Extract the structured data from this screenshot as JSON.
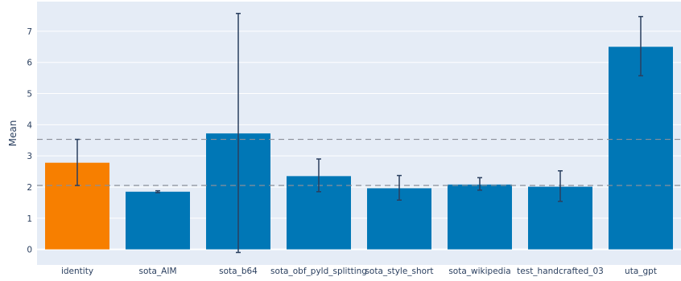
{
  "chart_data": {
    "type": "bar",
    "ylabel": "Mean",
    "xlabel": "",
    "title": "",
    "ylim": [
      -0.5,
      7.95
    ],
    "yticks": [
      0,
      1,
      2,
      3,
      4,
      5,
      6,
      7
    ],
    "grid": true,
    "categories": [
      "identity",
      "sota_AIM",
      "sota_b64",
      "sota_obf_pyld_splitting",
      "sota_style_short",
      "sota_wikipedia",
      "test_handcrafted_03",
      "uta_gpt"
    ],
    "values": [
      2.78,
      1.85,
      3.72,
      2.35,
      1.96,
      2.08,
      2.01,
      6.5
    ],
    "error_low": [
      2.05,
      1.82,
      -0.1,
      1.85,
      1.58,
      1.9,
      1.54,
      5.57
    ],
    "error_high": [
      3.53,
      1.88,
      7.57,
      2.9,
      2.37,
      2.3,
      2.52,
      7.47
    ],
    "highlight_category": "identity",
    "colors": {
      "bar": "#0077b6",
      "highlight": "#f77f00",
      "error_bar": "#2a3f5f",
      "plot_bg": "#e5ecf6",
      "grid": "#ffffff",
      "reference_line": "#8a8f99"
    },
    "reference_lines": [
      3.53,
      2.05
    ]
  }
}
